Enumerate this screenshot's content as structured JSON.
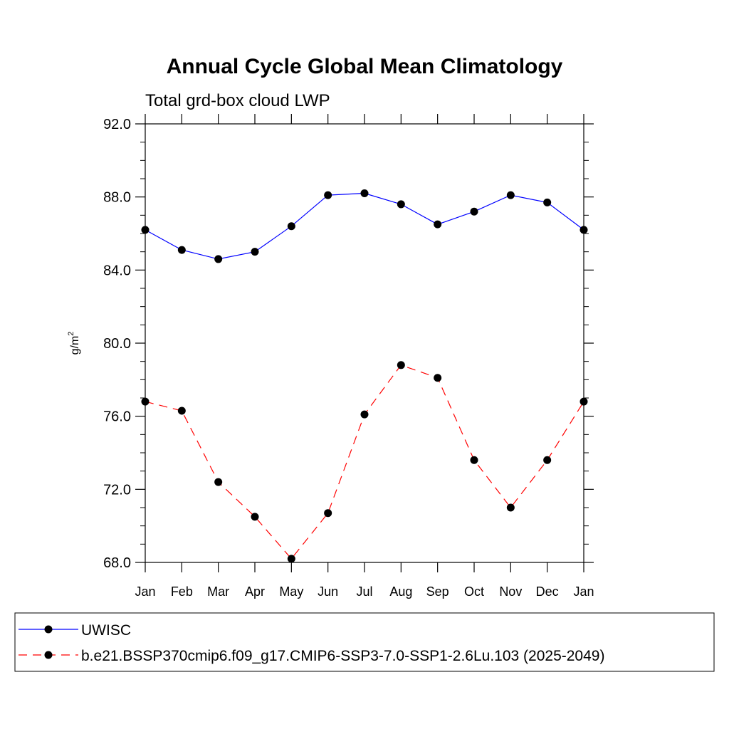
{
  "chart_data": {
    "type": "line",
    "title": "Annual Cycle Global Mean Climatology",
    "subtitle": "Total grd-box cloud LWP",
    "ylabel": "g/m",
    "ylabel_superscript": "2",
    "xlabel": "",
    "categories": [
      "Jan",
      "Feb",
      "Mar",
      "Apr",
      "May",
      "Jun",
      "Jul",
      "Aug",
      "Sep",
      "Oct",
      "Nov",
      "Dec",
      "Jan"
    ],
    "ylim": [
      68.0,
      92.0
    ],
    "yticks": [
      "68.0",
      "72.0",
      "76.0",
      "80.0",
      "84.0",
      "88.0",
      "92.0"
    ],
    "ytick_values": [
      68,
      72,
      76,
      80,
      84,
      88,
      92
    ],
    "grid": false,
    "legend_position": "bottom",
    "series": [
      {
        "name": "UWISC",
        "color": "#0000ff",
        "line_style": "solid",
        "marker": "filled-circle",
        "values": [
          86.2,
          85.1,
          84.6,
          85.0,
          86.4,
          88.1,
          88.2,
          87.6,
          86.5,
          87.2,
          88.1,
          87.7,
          86.2
        ]
      },
      {
        "name": "b.e21.BSSP370cmip6.f09_g17.CMIP6-SSP3-7.0-SSP1-2.6Lu.103 (2025-2049)",
        "color": "#ff0000",
        "line_style": "dashed",
        "marker": "filled-circle",
        "values": [
          76.8,
          76.3,
          72.4,
          70.5,
          68.2,
          70.7,
          76.1,
          78.8,
          78.1,
          73.6,
          71.0,
          73.6,
          76.8
        ]
      }
    ]
  }
}
